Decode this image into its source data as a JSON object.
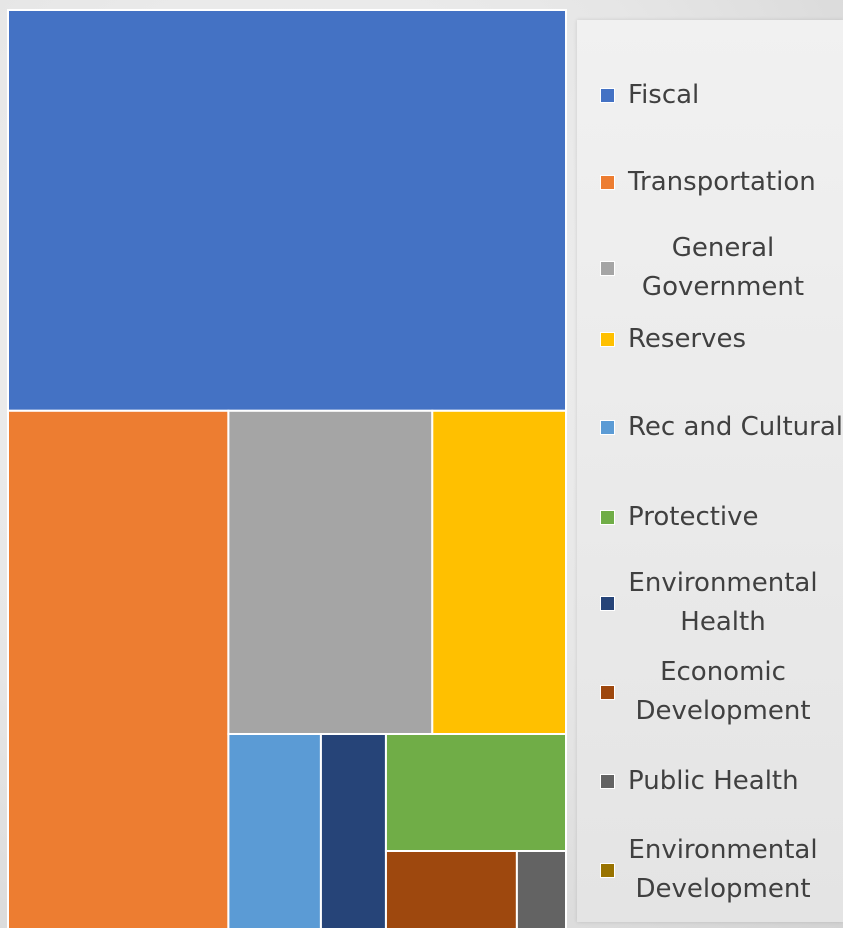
{
  "chart_data": {
    "type": "treemap",
    "categories": [
      "Fiscal",
      "Transportation",
      "General Government",
      "Reserves",
      "Rec and Cultural",
      "Protective",
      "Environmental Health",
      "Economic Development",
      "Public Health",
      "Environmental Development"
    ],
    "values": [
      41.4,
      22.0,
      12.2,
      8.0,
      3.7,
      3.9,
      2.6,
      2.4,
      0.8,
      0.1
    ],
    "colors": [
      "#4472C4",
      "#ED7D31",
      "#A5A5A5",
      "#FFC000",
      "#5B9BD5",
      "#70AD47",
      "#264478",
      "#9E480E",
      "#636363",
      "#997300"
    ],
    "legend_position": "right"
  }
}
